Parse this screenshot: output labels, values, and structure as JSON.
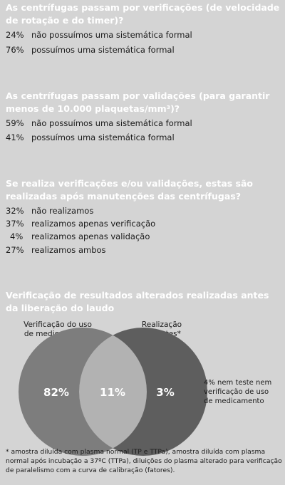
{
  "sections": [
    {
      "question": "As centrífugas passam por verificações (de velocidade de rotação e do timer)?",
      "items": [
        {
          "pct": "24%",
          "text": "não possuímos uma sistemática formal"
        },
        {
          "pct": "76%",
          "text": "possuímos uma sistemática formal"
        }
      ]
    },
    {
      "question": "As centrífugas passam por validações (para garantir menos de 10.000 plaquetas/mm³)?",
      "items": [
        {
          "pct": "59%",
          "text": "não possuímos uma sistemática formal"
        },
        {
          "pct": "41%",
          "text": "possuímos uma sistemática formal"
        }
      ]
    },
    {
      "question": "Se realiza verificações e/ou validações, estas são realizadas após manutenções das centrífugas?",
      "items": [
        {
          "pct": "32%",
          "text": "não realizamos"
        },
        {
          "pct": "37%",
          "text": "realizamos apenas verificação"
        },
        {
          "pct": "4%",
          "text": "realizamos apenas validação"
        },
        {
          "pct": "27%",
          "text": "realizamos ambos"
        }
      ]
    }
  ],
  "venn": {
    "title": "Verificação de resultados alterados realizadas antes da liberação do laudo",
    "left_label_1": "Verificação do uso",
    "left_label_2": "de medicamentos",
    "right_label_1": "Realização",
    "right_label_2": "de testes*",
    "note_1": "4% nem teste nem",
    "note_2": "verificação de uso",
    "note_3": "de medicamento",
    "footnote": "* amostra diluída com plasma normal (TP e TTPa), amostra diluída com plasma normal após incubação a 37ºC (TTPa), diluições do plasma alterado para verificação de paralelismo com a curva de calibração (fatores)."
  },
  "chart_data": {
    "type": "venn",
    "title": "Verificação de resultados alterados realizadas antes da liberação do laudo",
    "sets": [
      "Verificação do uso de medicamentos",
      "Realização de testes*"
    ],
    "values": {
      "only_left": "82%",
      "intersection": "11%",
      "only_right": "3%",
      "neither": "4%"
    },
    "colors": {
      "left": "#7d7d7d",
      "right": "#5e5e5e",
      "intersection": "#b2b2b2",
      "text": "#ffffff"
    }
  }
}
